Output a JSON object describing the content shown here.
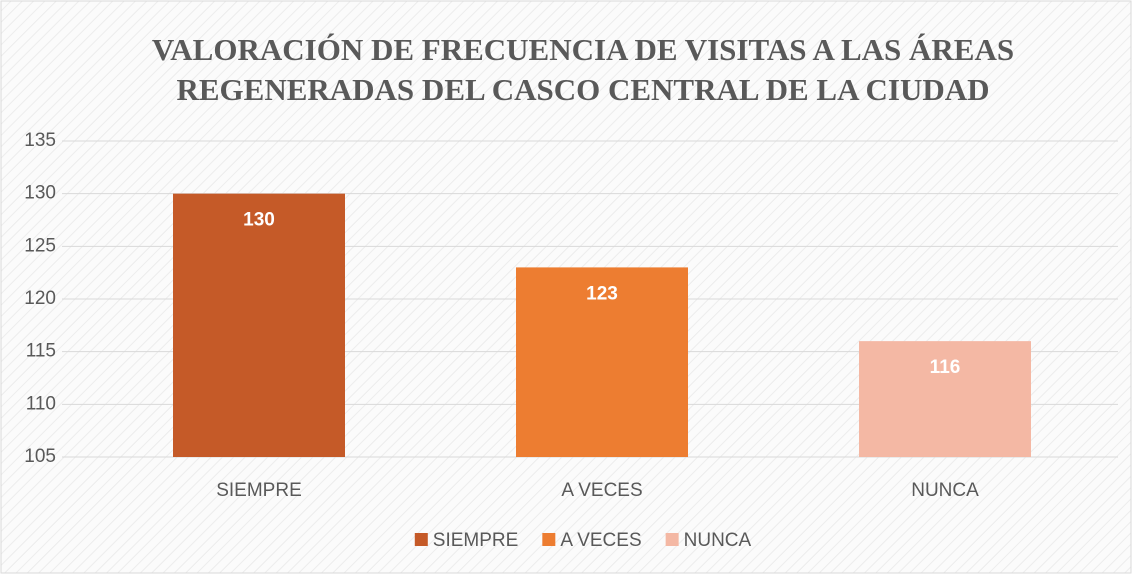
{
  "chart_data": {
    "type": "bar",
    "title": [
      "VALORACIÓN DE FRECUENCIA DE VISITAS A LAS ÁREAS",
      "REGENERADAS DEL CASCO CENTRAL DE LA CIUDAD"
    ],
    "categories": [
      "SIEMPRE",
      "A VECES",
      "NUNCA"
    ],
    "values": [
      130,
      123,
      116
    ],
    "colors": [
      "#c55a28",
      "#ed7d31",
      "#f4b8a4"
    ],
    "ylim": [
      105,
      135
    ],
    "yticks": [
      105,
      110,
      115,
      120,
      125,
      130,
      135
    ],
    "grid": true,
    "legend": "bottom"
  }
}
